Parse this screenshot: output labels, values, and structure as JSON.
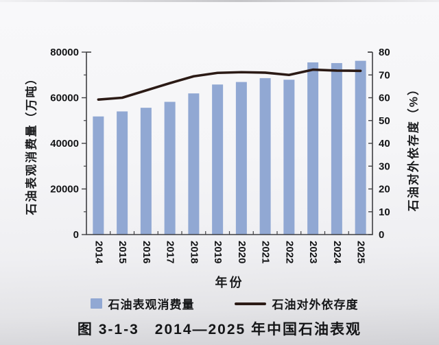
{
  "figure": {
    "caption": "图 3-1-3　2014—2025 年中国石油表观"
  },
  "chart_data": {
    "type": "bar",
    "subtype": "bar+line-dual-axis",
    "categories": [
      "2014",
      "2015",
      "2016",
      "2017",
      "2018",
      "2019",
      "2020",
      "2021",
      "2022",
      "2023",
      "2024",
      "2025"
    ],
    "series": [
      {
        "name": "石油表观消费量",
        "type": "bar",
        "axis": "left",
        "unit": "万吨",
        "color": "#91a8d3",
        "values": [
          51800,
          54000,
          55600,
          58200,
          61900,
          65800,
          66900,
          68600,
          67900,
          75500,
          75200,
          76200
        ]
      },
      {
        "name": "石油对外依存度",
        "type": "line",
        "axis": "right",
        "unit": "%",
        "color": "#2b1a15",
        "values": [
          59.2,
          60.0,
          63.2,
          66.4,
          69.4,
          70.9,
          71.2,
          71.0,
          70.0,
          72.3,
          71.9,
          71.8
        ]
      }
    ],
    "x_axis": {
      "label": "年份"
    },
    "left_axis": {
      "label": "石油表观消费量（万吨）",
      "min": 0,
      "max": 80000,
      "major_step": 20000,
      "minor_step": 10000,
      "ticks": [
        "0",
        "20000",
        "40000",
        "60000",
        "80000"
      ]
    },
    "right_axis": {
      "label": "石油对外依存度（%）",
      "min": 0,
      "max": 80,
      "major_step": 10,
      "ticks": [
        "0",
        "10",
        "20",
        "30",
        "40",
        "50",
        "60",
        "70",
        "80"
      ]
    },
    "grid": false,
    "legend_position": "bottom",
    "legend": [
      {
        "label": "石油表观消费量",
        "marker": "square",
        "color": "#91a8d3"
      },
      {
        "label": "石油对外依存度",
        "marker": "line",
        "color": "#2b1a15"
      }
    ]
  }
}
